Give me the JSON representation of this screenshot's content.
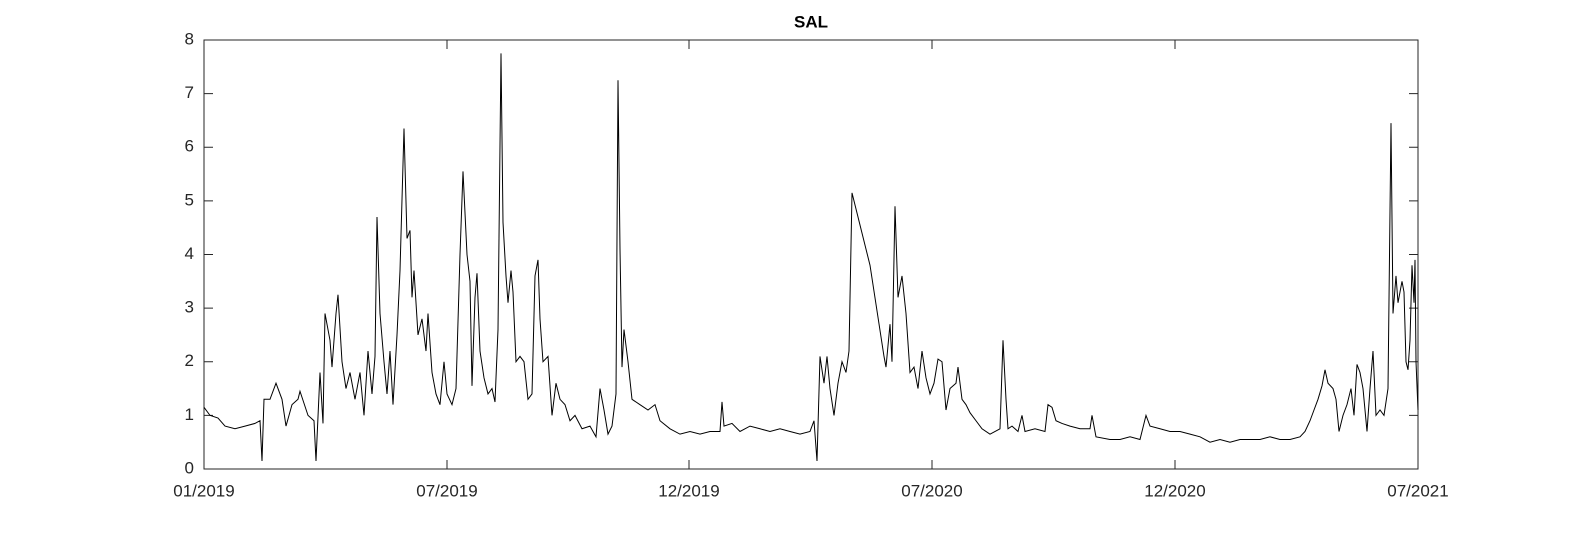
{
  "chart_data": {
    "type": "line",
    "title": "SAL",
    "color": "#000000",
    "xlim": [
      0,
      1214
    ],
    "xticks": [
      {
        "value": 0,
        "label": "01/2019"
      },
      {
        "value": 243,
        "label": "07/2019"
      },
      {
        "value": 485,
        "label": "12/2019"
      },
      {
        "value": 728,
        "label": "07/2020"
      },
      {
        "value": 971,
        "label": "12/2020"
      },
      {
        "value": 1214,
        "label": "07/2021"
      }
    ],
    "ylim": [
      0,
      8
    ],
    "yticks": [
      0,
      1,
      2,
      3,
      4,
      5,
      6,
      7,
      8
    ],
    "box": true,
    "x": [
      0,
      6,
      14,
      21,
      31,
      41,
      51,
      56,
      58,
      60,
      66,
      72,
      78,
      82,
      88,
      94,
      96,
      104,
      110,
      112,
      116,
      119,
      121,
      126,
      128,
      132,
      134,
      138,
      142,
      146,
      151,
      156,
      160,
      164,
      168,
      171,
      173,
      176,
      180,
      183,
      186,
      189,
      193,
      196,
      200,
      203,
      206,
      208,
      210,
      214,
      218,
      222,
      224,
      228,
      232,
      236,
      240,
      243,
      248,
      252,
      256,
      259,
      263,
      266,
      268,
      271,
      273,
      276,
      280,
      284,
      288,
      291,
      294,
      297,
      299,
      302,
      304,
      307,
      309,
      312,
      316,
      320,
      324,
      328,
      331,
      334,
      336,
      339,
      344,
      348,
      352,
      356,
      361,
      366,
      371,
      378,
      386,
      392,
      396,
      400,
      404,
      408,
      412,
      414,
      416,
      418,
      420,
      424,
      428,
      436,
      444,
      451,
      456,
      466,
      476,
      486,
      496,
      506,
      516,
      518,
      520,
      528,
      536,
      546,
      556,
      566,
      576,
      586,
      596,
      606,
      610,
      613,
      616,
      620,
      623,
      626,
      630,
      634,
      638,
      642,
      645,
      648,
      666,
      680,
      682,
      686,
      688,
      691,
      694,
      698,
      702,
      706,
      710,
      714,
      718,
      722,
      726,
      730,
      734,
      738,
      742,
      746,
      752,
      754,
      758,
      762,
      766,
      772,
      778,
      786,
      796,
      799,
      802,
      804,
      808,
      814,
      818,
      821,
      831,
      841,
      844,
      848,
      852,
      858,
      866,
      876,
      886,
      888,
      892,
      906,
      916,
      926,
      936,
      942,
      946,
      956,
      966,
      976,
      986,
      996,
      1006,
      1016,
      1026,
      1036,
      1046,
      1056,
      1066,
      1076,
      1086,
      1096,
      1101,
      1106,
      1110,
      1114,
      1118,
      1121,
      1124,
      1129,
      1132,
      1135,
      1139,
      1143,
      1147,
      1150,
      1153,
      1156,
      1159,
      1163,
      1166,
      1169,
      1172,
      1176,
      1180,
      1184,
      1187,
      1189,
      1192,
      1194,
      1198,
      1200,
      1202,
      1204,
      1206,
      1208,
      1210,
      1211,
      1212,
      1214
    ],
    "values": [
      1.15,
      1.0,
      0.95,
      0.8,
      0.75,
      0.8,
      0.85,
      0.9,
      0.15,
      1.3,
      1.3,
      1.6,
      1.3,
      0.8,
      1.2,
      1.3,
      1.45,
      1.0,
      0.9,
      0.15,
      1.8,
      0.85,
      2.9,
      2.4,
      1.9,
      2.9,
      3.25,
      2.0,
      1.5,
      1.8,
      1.3,
      1.8,
      1.0,
      2.2,
      1.4,
      2.1,
      4.7,
      2.9,
      2.0,
      1.4,
      2.2,
      1.2,
      2.5,
      3.7,
      6.35,
      4.3,
      4.45,
      3.2,
      3.7,
      2.5,
      2.8,
      2.2,
      2.9,
      1.8,
      1.4,
      1.2,
      2.0,
      1.4,
      1.2,
      1.5,
      4.0,
      5.55,
      4.0,
      3.5,
      1.55,
      3.2,
      3.65,
      2.2,
      1.7,
      1.4,
      1.5,
      1.25,
      2.6,
      7.75,
      4.6,
      3.6,
      3.1,
      3.7,
      3.3,
      2.0,
      2.1,
      2.0,
      1.3,
      1.4,
      3.6,
      3.9,
      2.8,
      2.0,
      2.1,
      1.0,
      1.6,
      1.3,
      1.2,
      0.9,
      1.0,
      0.75,
      0.8,
      0.6,
      1.5,
      1.1,
      0.65,
      0.8,
      1.4,
      7.25,
      4.1,
      1.9,
      2.6,
      2.0,
      1.3,
      1.2,
      1.1,
      1.2,
      0.9,
      0.75,
      0.65,
      0.7,
      0.65,
      0.7,
      0.7,
      1.25,
      0.8,
      0.85,
      0.7,
      0.8,
      0.75,
      0.7,
      0.75,
      0.7,
      0.65,
      0.7,
      0.9,
      0.15,
      2.1,
      1.6,
      2.1,
      1.5,
      1.0,
      1.6,
      2.0,
      1.8,
      2.2,
      5.15,
      3.8,
      2.1,
      1.9,
      2.7,
      2.0,
      4.9,
      3.2,
      3.6,
      2.9,
      1.8,
      1.9,
      1.5,
      2.2,
      1.7,
      1.4,
      1.6,
      2.05,
      2.0,
      1.1,
      1.5,
      1.6,
      1.9,
      1.3,
      1.2,
      1.05,
      0.9,
      0.75,
      0.65,
      0.75,
      2.4,
      1.3,
      0.75,
      0.8,
      0.7,
      1.0,
      0.7,
      0.75,
      0.7,
      1.2,
      1.15,
      0.9,
      0.85,
      0.8,
      0.75,
      0.75,
      1.0,
      0.6,
      0.55,
      0.55,
      0.6,
      0.55,
      1.0,
      0.8,
      0.75,
      0.7,
      0.7,
      0.65,
      0.6,
      0.5,
      0.55,
      0.5,
      0.55,
      0.55,
      0.55,
      0.6,
      0.55,
      0.55,
      0.6,
      0.7,
      0.9,
      1.1,
      1.3,
      1.55,
      1.85,
      1.6,
      1.5,
      1.3,
      0.7,
      1.0,
      1.2,
      1.5,
      1.0,
      1.95,
      1.8,
      1.5,
      0.7,
      1.5,
      2.2,
      1.0,
      1.1,
      1.0,
      1.5,
      6.45,
      2.9,
      3.6,
      3.1,
      3.5,
      3.3,
      2.0,
      1.85,
      2.4,
      3.8,
      3.1,
      3.9,
      2.0,
      1.1
    ]
  }
}
